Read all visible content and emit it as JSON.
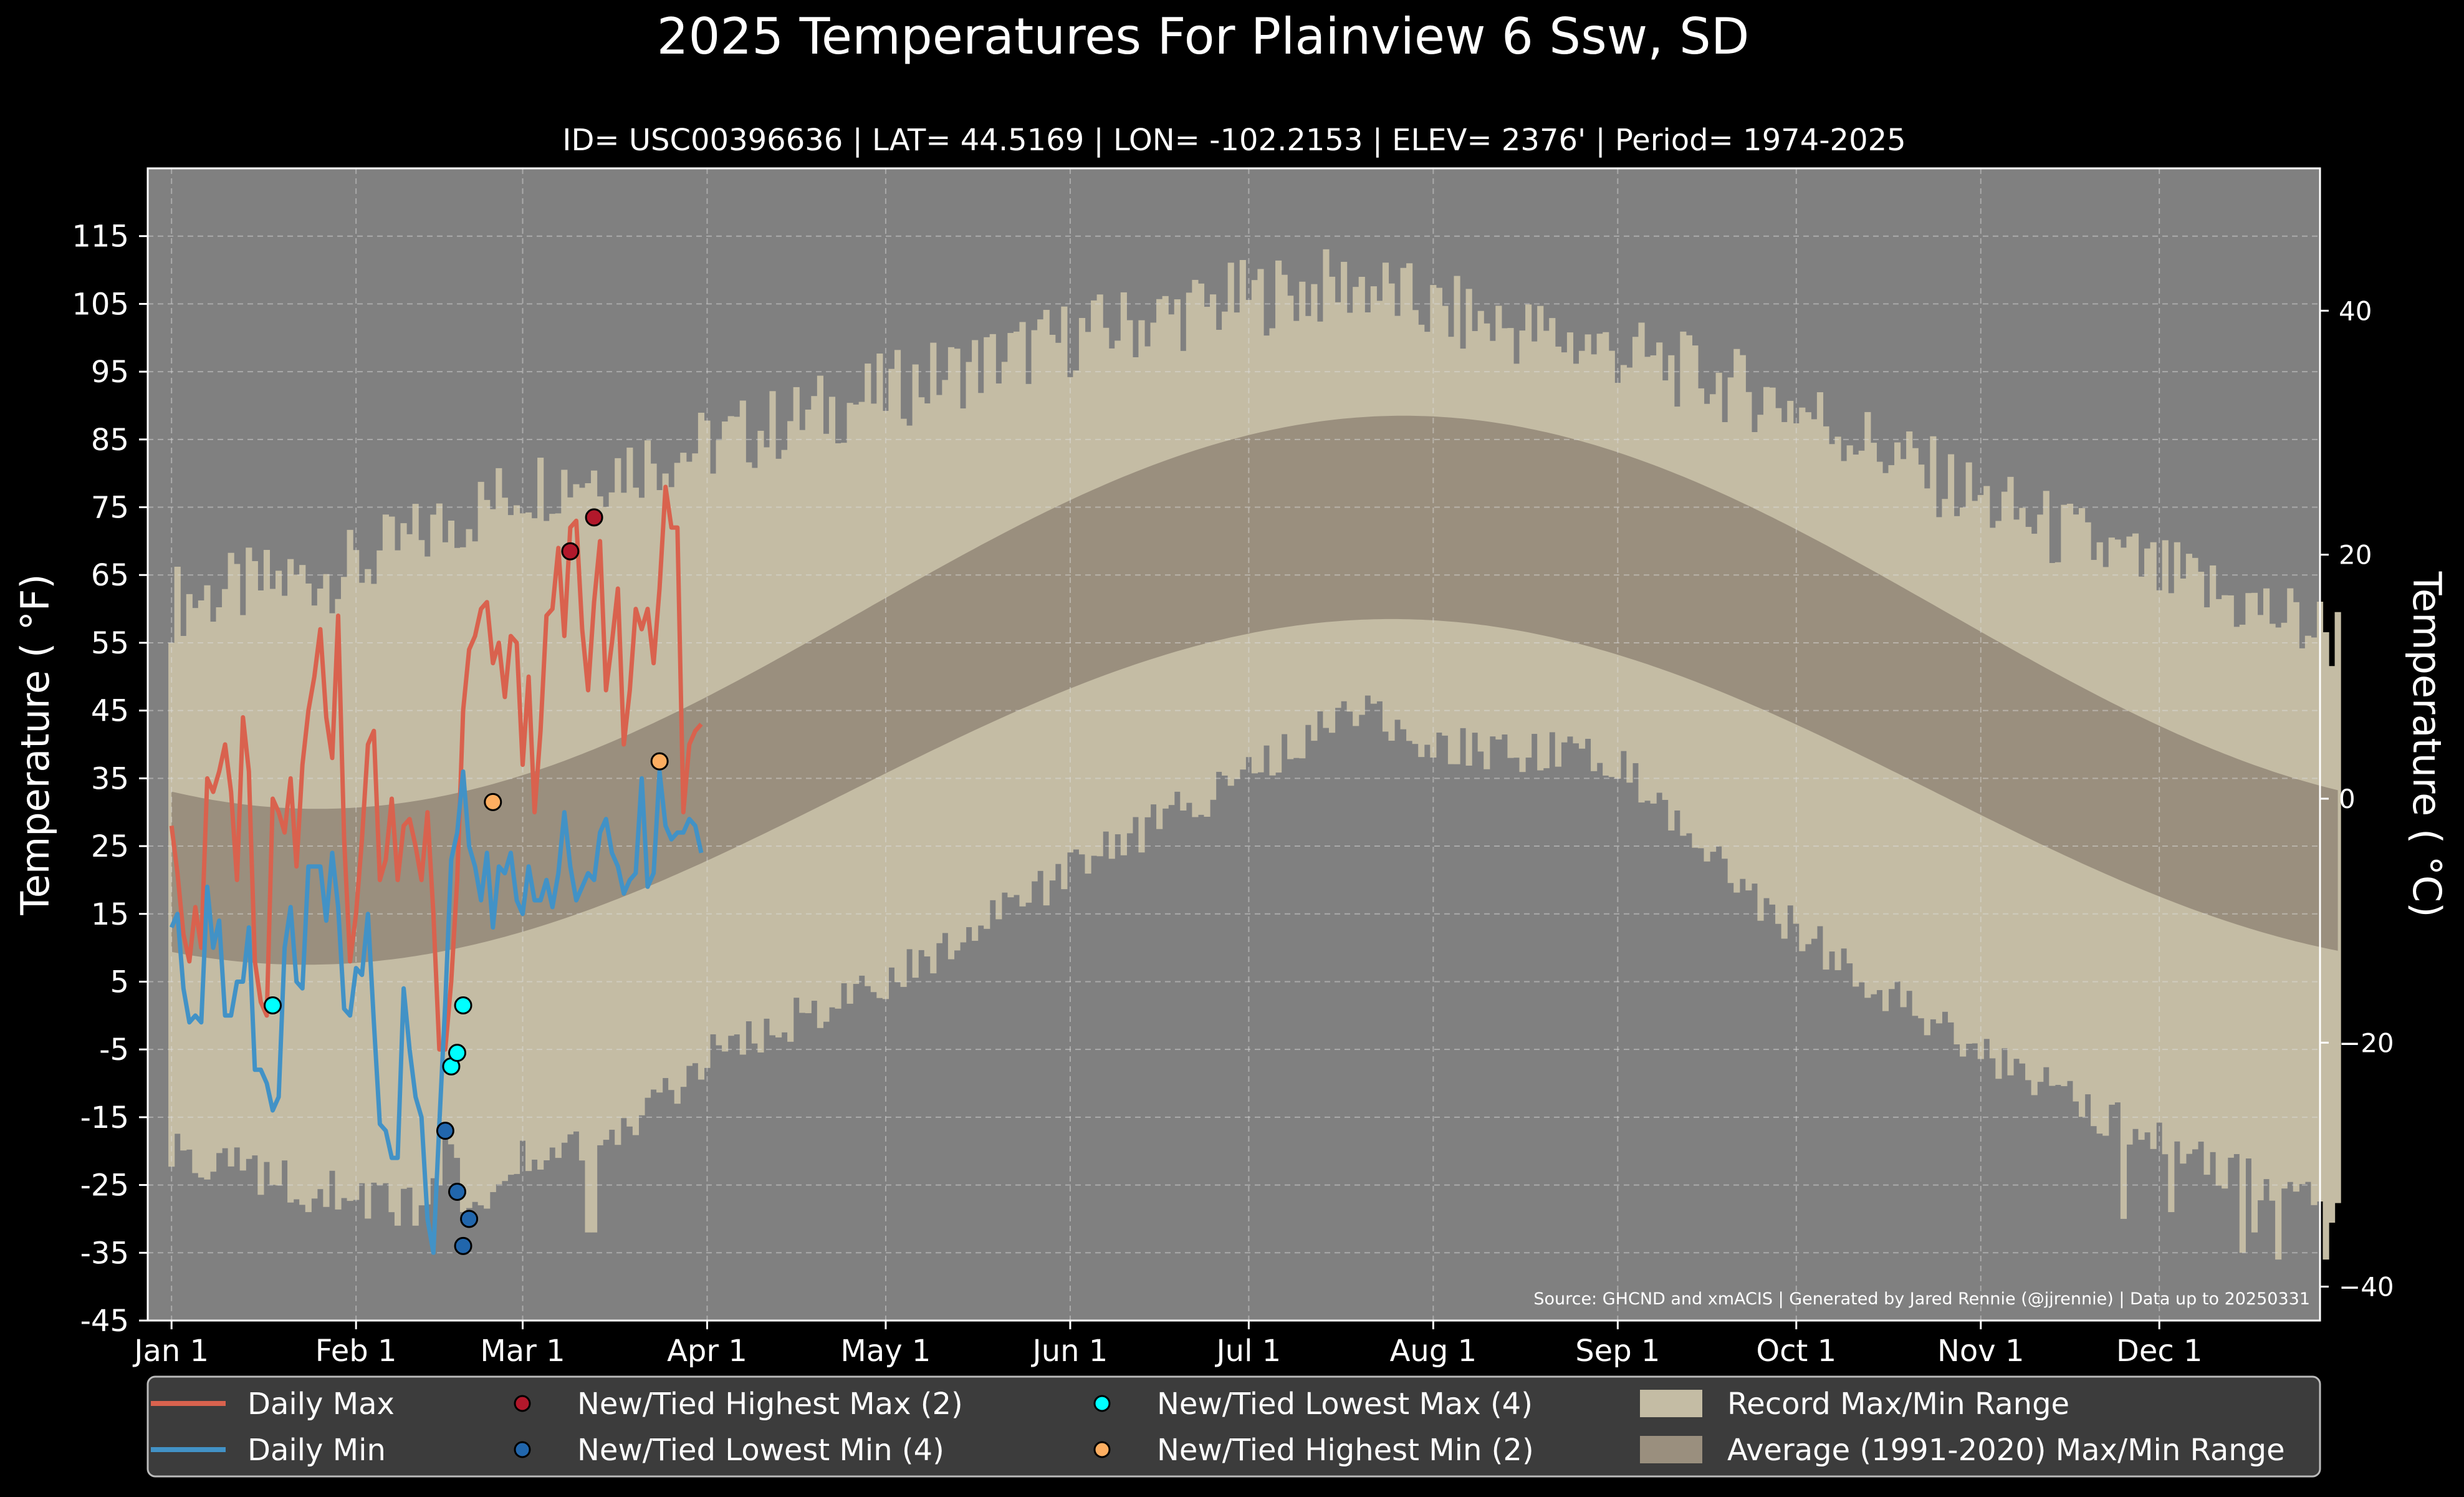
{
  "chart_data": {
    "type": "line",
    "title": "2025 Temperatures For Plainview 6 Ssw, SD",
    "subtitle": "ID= USC00396636 | LAT= 44.5169 | LON= -102.2153 | ELEV= 2376' | Period= 1974-2025",
    "ylabel": "Temperature ( $^\\circ$F)",
    "ylabel_display": "Temperature ( °F)",
    "y2label_display": "Temperature ( °C)",
    "ylim": [
      -45,
      125
    ],
    "y2lim": [
      -42.78,
      51.67
    ],
    "xlim": [
      -4,
      361
    ],
    "grid": true,
    "yticks": [
      -45,
      -35,
      -25,
      -15,
      -5,
      5,
      15,
      25,
      35,
      45,
      55,
      65,
      75,
      85,
      95,
      105,
      115
    ],
    "y2ticks": [
      -40,
      -20,
      0,
      20,
      40
    ],
    "xtick_days": [
      0,
      31,
      59,
      90,
      120,
      151,
      181,
      212,
      243,
      273,
      304,
      334
    ],
    "xtick_labels": [
      "Jan 1",
      "Feb 1",
      "Mar 1",
      "Apr 1",
      "May 1",
      "Jun 1",
      "Jul 1",
      "Aug 1",
      "Sep 1",
      "Oct 1",
      "Nov 1",
      "Dec 1"
    ],
    "source": "Source: GHCND and xmACIS | Generated by Jared Rennie (@jjrennie) | Data up to 20250331",
    "legend_position": "bottom",
    "legend": [
      {
        "label": "Daily Max",
        "kind": "line",
        "color": "#d9624e"
      },
      {
        "label": "Daily Min",
        "kind": "line",
        "color": "#4292c6"
      },
      {
        "label": "New/Tied Highest Max (2)",
        "kind": "dot",
        "color": "#b2182b"
      },
      {
        "label": "New/Tied Lowest Min (4)",
        "kind": "dot",
        "color": "#2166ac"
      },
      {
        "label": "New/Tied Lowest Max (4)",
        "kind": "dot",
        "color": "#00ffff"
      },
      {
        "label": "New/Tied Highest Min (2)",
        "kind": "dot",
        "color": "#fdae61"
      },
      {
        "label": "Record Max/Min Range",
        "kind": "patch",
        "color": "#c4bca4"
      },
      {
        "label": "Average (1991-2020) Max/Min Range",
        "kind": "patch",
        "color": "#9a8f7e"
      }
    ],
    "colors": {
      "background": "#000000",
      "plot_bg": "#808080",
      "record_band": "#c4bca4",
      "normal_band": "#9a8f7e",
      "max_line": "#d9624e",
      "min_line": "#4292c6"
    },
    "record_max_anchors": {
      "x": [
        0,
        31,
        59,
        90,
        120,
        151,
        181,
        200,
        212,
        243,
        273,
        304,
        334,
        364
      ],
      "y": [
        61,
        66,
        78,
        84,
        92,
        100,
        106,
        108,
        104,
        98,
        90,
        76,
        65,
        56
      ]
    },
    "record_min_anchors": {
      "x": [
        0,
        31,
        50,
        59,
        75,
        90,
        120,
        151,
        181,
        200,
        212,
        243,
        260,
        273,
        304,
        334,
        364
      ],
      "y": [
        -20,
        -27,
        -30,
        -20,
        -18,
        -6,
        5,
        21,
        36,
        46,
        40,
        38,
        22,
        13,
        -6,
        -19,
        -29
      ],
      "wiggle": 3.2,
      "forced": [
        [
          23,
          -29
        ],
        [
          24,
          -27
        ],
        [
          38,
          -31
        ],
        [
          41,
          -31
        ],
        [
          42,
          -28
        ],
        [
          44,
          -24
        ],
        [
          45,
          -25
        ],
        [
          46,
          -18
        ],
        [
          47,
          -19
        ],
        [
          48,
          -21
        ],
        [
          49,
          -29
        ],
        [
          52,
          -28
        ],
        [
          70,
          -32
        ],
        [
          71,
          -32
        ],
        [
          328,
          -30
        ],
        [
          336,
          -29
        ],
        [
          348,
          -35
        ],
        [
          350,
          -32
        ],
        [
          354,
          -36
        ],
        [
          362,
          -36
        ]
      ]
    },
    "normal_high": {
      "min": 30.5,
      "max": 88.5,
      "peak_day": 207
    },
    "normal_low": {
      "min": 7.5,
      "max": 58.5,
      "peak_day": 205
    },
    "series": [
      {
        "name": "Daily Max",
        "x": [
          0,
          1,
          2,
          3,
          4,
          5,
          6,
          7,
          8,
          9,
          10,
          11,
          12,
          13,
          14,
          15,
          16,
          17,
          18,
          19,
          20,
          21,
          22,
          23,
          24,
          25,
          26,
          27,
          28,
          29,
          30,
          31,
          32,
          33,
          34,
          35,
          36,
          37,
          38,
          39,
          40,
          41,
          42,
          43,
          44,
          45,
          46,
          47,
          48,
          49,
          50,
          51,
          52,
          53,
          54,
          55,
          56,
          57,
          58,
          59,
          60,
          61,
          62,
          63,
          64,
          65,
          66,
          67,
          68,
          69,
          70,
          71,
          72,
          73,
          74,
          75,
          76,
          77,
          78,
          79,
          80,
          81,
          82,
          83,
          84,
          85,
          86,
          87,
          88,
          89
        ],
        "y": [
          28,
          21,
          12,
          8,
          16,
          10,
          35,
          33,
          36,
          40,
          33,
          20,
          44,
          36,
          8,
          2,
          0,
          32,
          30,
          27,
          35,
          22,
          37,
          45,
          50,
          57,
          44,
          38,
          59,
          26,
          8,
          15,
          26,
          40,
          42,
          20,
          23,
          32,
          20,
          28,
          29,
          25,
          20,
          30,
          15,
          -5,
          -5,
          5,
          20,
          45,
          54,
          56,
          60,
          61,
          52,
          55,
          47,
          56,
          55,
          37,
          50,
          30,
          42,
          59,
          60,
          69,
          56,
          72,
          73,
          57,
          48,
          61,
          70,
          48,
          55,
          63,
          40,
          48,
          60,
          57,
          60,
          52,
          63,
          78,
          72,
          72,
          30,
          40,
          42,
          43
        ]
      },
      {
        "name": "Daily Min",
        "x": [
          0,
          1,
          2,
          3,
          4,
          5,
          6,
          7,
          8,
          9,
          10,
          11,
          12,
          13,
          14,
          15,
          16,
          17,
          18,
          19,
          20,
          21,
          22,
          23,
          24,
          25,
          26,
          27,
          28,
          29,
          30,
          31,
          32,
          33,
          34,
          35,
          36,
          37,
          38,
          39,
          40,
          41,
          42,
          43,
          44,
          45,
          46,
          47,
          48,
          49,
          50,
          51,
          52,
          53,
          54,
          55,
          56,
          57,
          58,
          59,
          60,
          61,
          62,
          63,
          64,
          65,
          66,
          67,
          68,
          69,
          70,
          71,
          72,
          73,
          74,
          75,
          76,
          77,
          78,
          79,
          80,
          81,
          82,
          83,
          84,
          85,
          86,
          87,
          88,
          89
        ],
        "y": [
          13,
          15,
          4,
          -1,
          0,
          -1,
          19,
          10,
          14,
          0,
          0,
          5,
          5,
          13,
          -8,
          -8,
          -10,
          -14,
          -12,
          10,
          16,
          5,
          4,
          22,
          22,
          22,
          14,
          24,
          16,
          1,
          0,
          7,
          6,
          15,
          -1,
          -16,
          -17,
          -21,
          -21,
          4,
          -5,
          -12,
          -15,
          -30,
          -35,
          -16,
          2,
          23,
          27,
          36,
          25,
          22,
          17,
          24,
          13,
          22,
          21,
          24,
          17,
          15,
          22,
          17,
          17,
          20,
          16,
          21,
          30,
          22,
          17,
          19,
          21,
          20,
          27,
          29,
          24,
          22,
          18,
          20,
          21,
          35,
          19,
          21,
          36,
          28,
          26,
          27,
          27,
          29,
          28,
          24
        ]
      }
    ],
    "markers": [
      {
        "type": "New/Tied Highest Max",
        "color": "#b2182b",
        "points": [
          [
            67,
            68.5
          ],
          [
            71,
            73.5
          ]
        ]
      },
      {
        "type": "New/Tied Lowest Min",
        "color": "#2166ac",
        "points": [
          [
            46,
            -17
          ],
          [
            48,
            -26
          ],
          [
            50,
            -30
          ],
          [
            49,
            -34
          ]
        ]
      },
      {
        "type": "New/Tied Lowest Max",
        "color": "#00ffff",
        "points": [
          [
            17,
            1.5
          ],
          [
            47,
            -7.5
          ],
          [
            48,
            -5.5
          ],
          [
            49,
            1.5
          ]
        ]
      },
      {
        "type": "New/Tied Highest Min",
        "color": "#fdae61",
        "points": [
          [
            54,
            31.5
          ],
          [
            82,
            37.5
          ]
        ]
      }
    ]
  }
}
